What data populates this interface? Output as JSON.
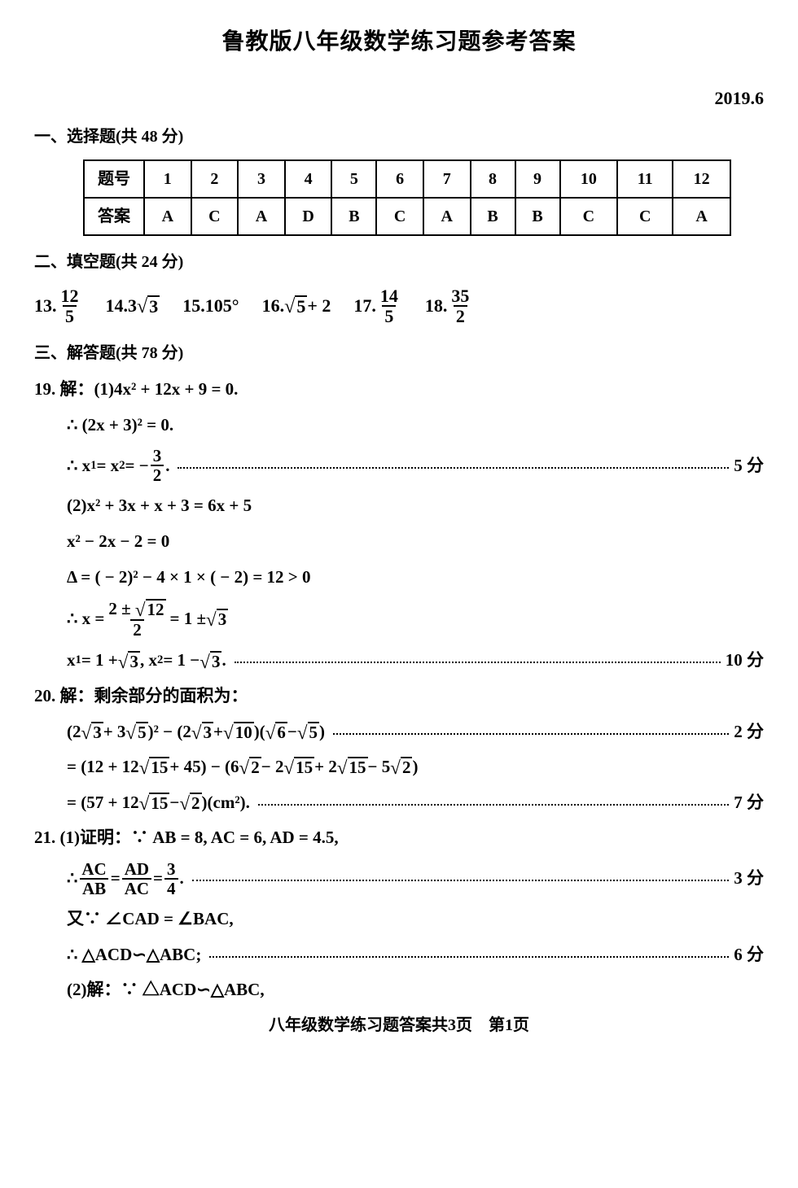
{
  "page": {
    "title": "鲁教版八年级数学练习题参考答案",
    "date": "2019.6",
    "footer": "八年级数学练习题答案共3页　第1页",
    "background_color": "#ffffff",
    "text_color": "#000000",
    "title_fontsize": 28,
    "body_fontsize": 20
  },
  "section1": {
    "heading": "一、选择题(共 48 分)",
    "table": {
      "row_header_1": "题号",
      "row_header_2": "答案",
      "numbers": [
        "1",
        "2",
        "3",
        "4",
        "5",
        "6",
        "7",
        "8",
        "9",
        "10",
        "11",
        "12"
      ],
      "answers": [
        "A",
        "C",
        "A",
        "D",
        "B",
        "C",
        "A",
        "B",
        "B",
        "C",
        "C",
        "A"
      ],
      "border_color": "#000000"
    }
  },
  "section2": {
    "heading": "二、填空题(共 24 分)",
    "items": {
      "q13": {
        "label": "13.",
        "num": "12",
        "den": "5"
      },
      "q14": {
        "label": "14.",
        "coef": "3",
        "rad": "3"
      },
      "q15": {
        "label": "15.",
        "value": "105°"
      },
      "q16": {
        "label": "16.",
        "rad": "5",
        "plus": " + 2"
      },
      "q17": {
        "label": "17.",
        "num": "14",
        "den": "5"
      },
      "q18": {
        "label": "18.",
        "num": "35",
        "den": "2"
      }
    }
  },
  "section3": {
    "heading": "三、解答题(共 78 分)",
    "q19": {
      "l1": "19. 解：(1)4x² + 12x + 9 = 0.",
      "l2": "∴ (2x + 3)² = 0.",
      "l3_pre": "∴ x",
      "l3_s1": "1",
      "l3_mid": " = x",
      "l3_s2": "2",
      "l3_eq": " = − ",
      "l3_num": "3",
      "l3_den": "2",
      "l3_dot": ".",
      "pts1": "5 分",
      "l4": "(2)x² + 3x + x + 3 = 6x + 5",
      "l5": "x² − 2x − 2 = 0",
      "l6": "Δ = ( − 2)² − 4 × 1 × ( − 2) = 12 > 0",
      "l7_pre": "∴ x = ",
      "l7_num_a": "2 ± ",
      "l7_num_rad": "12",
      "l7_den": "2",
      "l7_post": " = 1 ± ",
      "l7_rad2": "3",
      "l8_a": "x",
      "l8_s1": "1",
      "l8_b": " = 1 + ",
      "l8_r1": "3",
      "l8_c": " , x",
      "l8_s2": "2",
      "l8_d": " = 1 − ",
      "l8_r2": "3",
      "l8_e": ".",
      "pts2": "10 分"
    },
    "q20": {
      "l1": "20. 解：剩余部分的面积为：",
      "l2_a": "(2",
      "l2_r1": "3",
      "l2_b": " + 3",
      "l2_r2": "5",
      "l2_c": ")² − (2",
      "l2_r3": "3",
      "l2_d": " + ",
      "l2_r4": "10",
      "l2_e": ")(",
      "l2_r5": "6",
      "l2_f": " − ",
      "l2_r6": "5",
      "l2_g": ")",
      "pts1": "2 分",
      "l3_a": "= (12 + 12",
      "l3_r1": "15",
      "l3_b": " + 45) − (6",
      "l3_r2": "2",
      "l3_c": " − 2",
      "l3_r3": "15",
      "l3_d": " + 2",
      "l3_r4": "15",
      "l3_e": " − 5",
      "l3_r5": "2",
      "l3_f": ")",
      "l4_a": "= (57 + 12",
      "l4_r1": "15",
      "l4_b": " − ",
      "l4_r2": "2",
      "l4_c": ")(cm²).",
      "pts2": "7 分"
    },
    "q21": {
      "l1": "21. (1)证明：∵ AB = 8, AC = 6, AD = 4.5,",
      "l2_pre": "∴ ",
      "l2_f1n": "AC",
      "l2_f1d": "AB",
      "l2_eq1": " = ",
      "l2_f2n": "AD",
      "l2_f2d": "AC",
      "l2_eq2": " = ",
      "l2_f3n": "3",
      "l2_f3d": "4",
      "l2_dot": ".",
      "pts1": "3 分",
      "l3": "又∵ ∠CAD = ∠BAC,",
      "l4": "∴ △ACD∽△ABC;",
      "pts2": "6 分",
      "l5": "(2)解：∵ △ACD∽△ABC,"
    }
  }
}
